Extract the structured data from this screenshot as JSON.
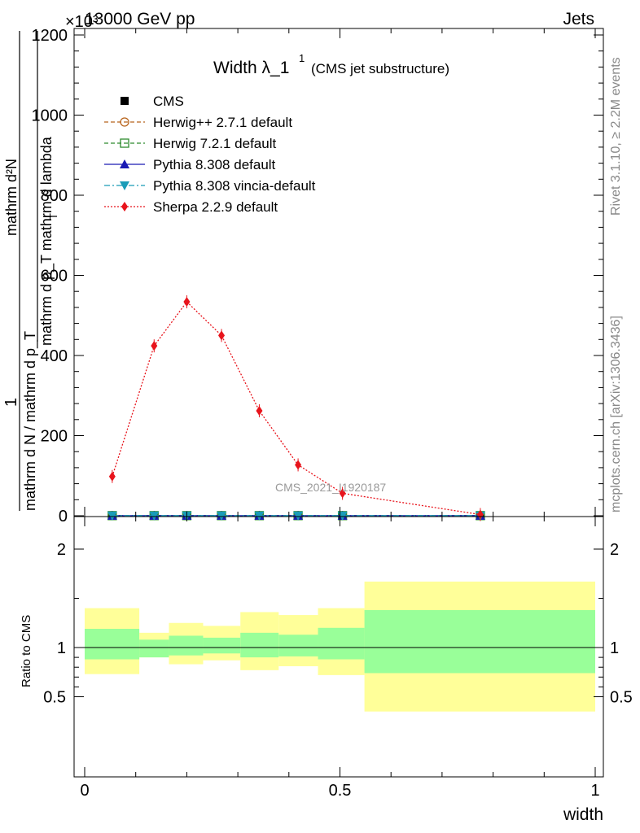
{
  "header": {
    "left": "13000 GeV pp",
    "right": "Jets",
    "exponent": "×10³"
  },
  "side_labels": {
    "rivet": "Rivet 3.1.10, ≥ 2.2M events",
    "mcplots": "mcplots.cern.ch [arXiv:1306.3436]"
  },
  "watermark": "CMS_2021_I1920187",
  "chart_data": [
    {
      "type": "line",
      "title": "Width λ_1",
      "title_sup": "1",
      "subtitle": "(CMS jet substructure)",
      "ylabel": {
        "outer_top": "1",
        "outer_bottom": "mathrm d N / mathrm d p_T",
        "outer_bottom_tail": "mathrm d lambda",
        "inner_top": "mathrm d²N",
        "inner_bottom": "mathrm d p_T mathrm d lambda",
        "inner_sub": "T"
      },
      "xlim": [
        0,
        1
      ],
      "ylim": [
        0,
        1200
      ],
      "y_ticks": [
        0,
        200,
        400,
        600,
        800,
        1000,
        1200
      ],
      "y_tick_labels": [
        "0",
        "200",
        "400",
        "600",
        "800",
        "1000",
        "1200"
      ],
      "x": [
        0.054,
        0.136,
        0.2,
        0.268,
        0.342,
        0.418,
        0.505,
        0.775
      ],
      "series": [
        {
          "name": "CMS",
          "color": "#000000",
          "marker": "square",
          "values": [
            0.3,
            0.3,
            0.3,
            0.3,
            0.3,
            0.3,
            0.3,
            0.3
          ]
        },
        {
          "name": "Herwig++ 2.7.1 default",
          "color": "#b8641c",
          "marker": "circle-open",
          "dash": "5,3",
          "values": [
            0.3,
            0.3,
            0.3,
            0.3,
            0.3,
            0.3,
            0.3,
            0.3
          ]
        },
        {
          "name": "Herwig 7.2.1 default",
          "color": "#2e8b2e",
          "marker": "square-open",
          "dash": "5,3",
          "values": [
            0.3,
            0.3,
            0.3,
            0.3,
            0.3,
            0.3,
            0.3,
            0.3
          ]
        },
        {
          "name": "Pythia 8.308 default",
          "color": "#1a1ab4",
          "marker": "triangle-up",
          "dash": "",
          "values": [
            0.3,
            0.3,
            0.3,
            0.3,
            0.3,
            0.3,
            0.3,
            0.3
          ]
        },
        {
          "name": "Pythia 8.308 vincia-default",
          "color": "#1a9cb8",
          "marker": "triangle-down",
          "dash": "7,3,2,3",
          "values": [
            0.3,
            0.3,
            0.3,
            0.3,
            0.3,
            0.3,
            0.3,
            0.3
          ]
        },
        {
          "name": "Sherpa 2.2.9 default",
          "color": "#e8141c",
          "marker": "diamond",
          "dash": "2,2",
          "values": [
            98,
            424,
            534,
            450,
            262,
            127,
            56,
            3
          ]
        }
      ],
      "legend": "top-left"
    },
    {
      "type": "area",
      "ylabel": "Ratio to CMS",
      "xlabel": "width",
      "xlim": [
        0,
        1
      ],
      "ylim": [
        0.35,
        2.25
      ],
      "x_ticks": [
        0,
        0.5,
        1
      ],
      "x_tick_labels": [
        "0",
        "0.5",
        "1"
      ],
      "y_ticks": [
        0.5,
        1,
        2
      ],
      "y_tick_labels": [
        "0.5",
        "1",
        "2"
      ],
      "reference_line": 1,
      "bins": [
        {
          "lo": 0.0,
          "hi": 0.107,
          "band_inner": [
            0.88,
            1.19
          ],
          "band_outer": [
            0.73,
            1.4
          ]
        },
        {
          "lo": 0.107,
          "hi": 0.165,
          "band_inner": [
            0.9,
            1.08
          ],
          "band_outer": [
            0.9,
            1.15
          ]
        },
        {
          "lo": 0.165,
          "hi": 0.232,
          "band_inner": [
            0.92,
            1.12
          ],
          "band_outer": [
            0.83,
            1.25
          ]
        },
        {
          "lo": 0.232,
          "hi": 0.305,
          "band_inner": [
            0.94,
            1.1
          ],
          "band_outer": [
            0.87,
            1.22
          ]
        },
        {
          "lo": 0.305,
          "hi": 0.38,
          "band_inner": [
            0.9,
            1.15
          ],
          "band_outer": [
            0.77,
            1.36
          ]
        },
        {
          "lo": 0.38,
          "hi": 0.457,
          "band_inner": [
            0.91,
            1.13
          ],
          "band_outer": [
            0.81,
            1.33
          ]
        },
        {
          "lo": 0.457,
          "hi": 0.548,
          "band_inner": [
            0.88,
            1.2
          ],
          "band_outer": [
            0.72,
            1.4
          ]
        },
        {
          "lo": 0.548,
          "hi": 1.0,
          "band_inner": [
            0.74,
            1.38
          ],
          "band_outer": [
            0.35,
            1.67
          ]
        }
      ],
      "colors": {
        "band_inner": "#99ff99",
        "band_outer": "#ffff99"
      }
    }
  ]
}
